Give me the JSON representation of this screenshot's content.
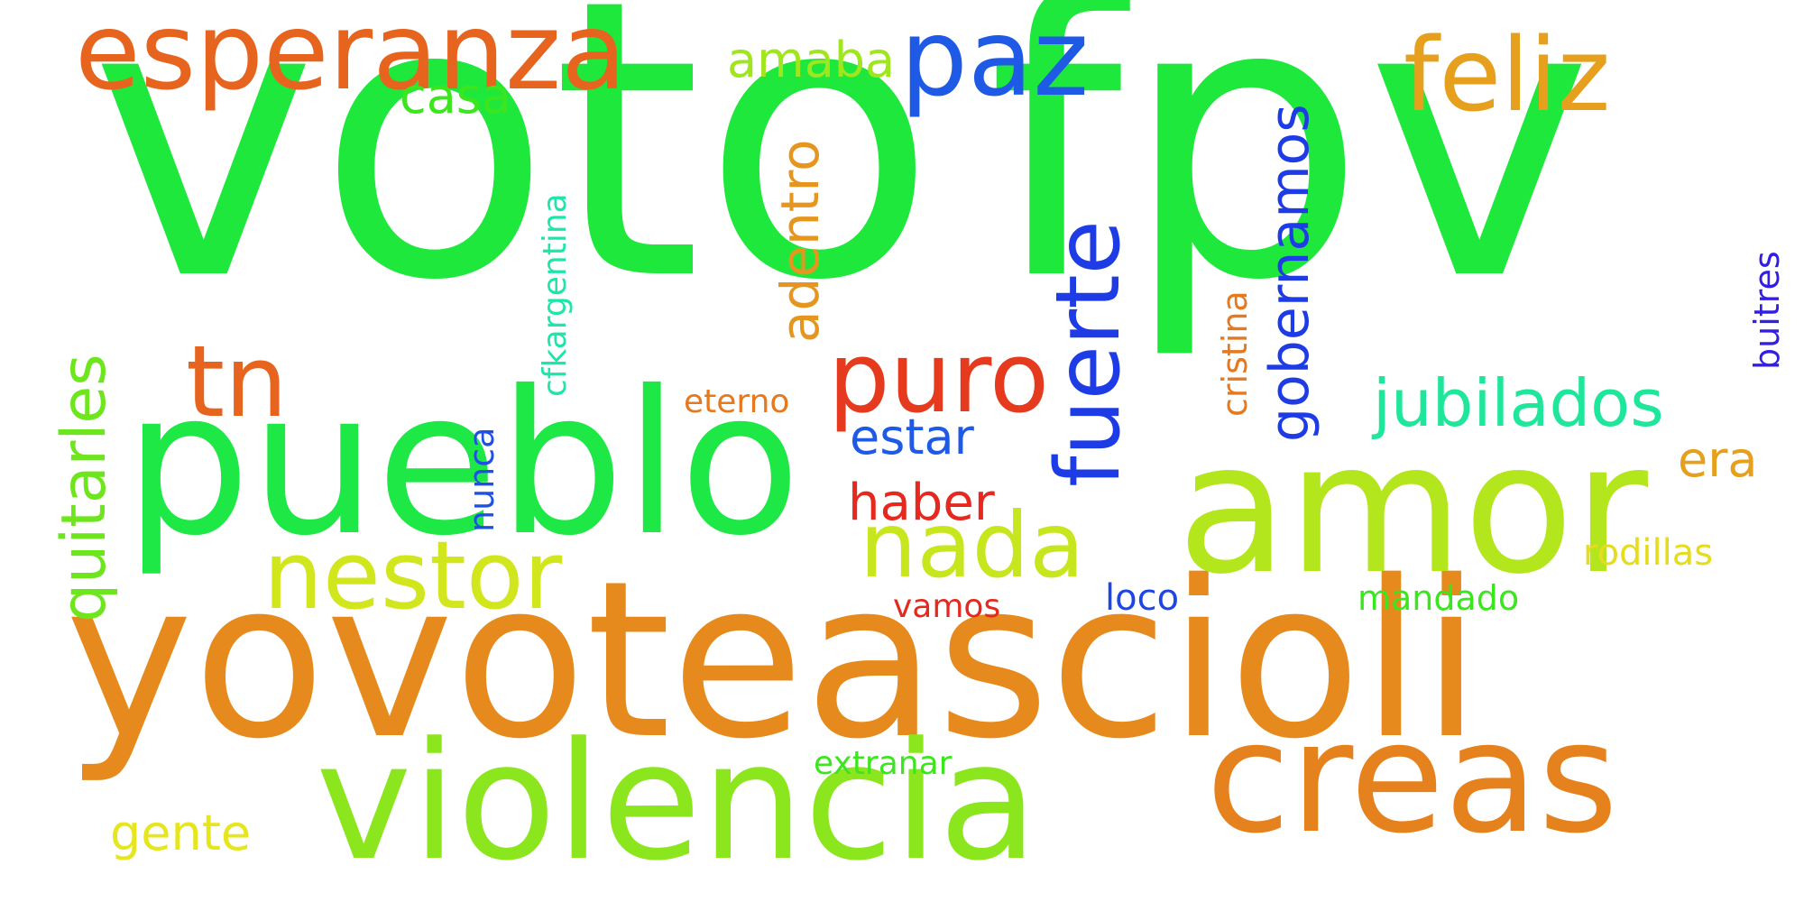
{
  "words": {
    "voto": {
      "text": "voto",
      "color": "#1ee83c"
    },
    "fpv": {
      "text": "fpv",
      "color": "#1ee83c"
    },
    "yovoteascioli": {
      "text": "yovoteascioli",
      "color": "#e68a1e"
    },
    "pueblo": {
      "text": "pueblo",
      "color": "#1ee845"
    },
    "amor": {
      "text": "amor",
      "color": "#b4e61e"
    },
    "violencia": {
      "text": "violencia",
      "color": "#8ce61e"
    },
    "creas": {
      "text": "creas",
      "color": "#e6821e"
    },
    "esperanza": {
      "text": "esperanza",
      "color": "#e6641e"
    },
    "paz": {
      "text": "paz",
      "color": "#1e5ae6"
    },
    "feliz": {
      "text": "feliz",
      "color": "#e6a01e"
    },
    "tn": {
      "text": "tn",
      "color": "#e6641e"
    },
    "puro": {
      "text": "puro",
      "color": "#e63a1e"
    },
    "nestor": {
      "text": "nestor",
      "color": "#d2e61e"
    },
    "nada": {
      "text": "nada",
      "color": "#c8e61e"
    },
    "fuerte": {
      "text": "fuerte",
      "color": "#1e3ce6"
    },
    "jubilados": {
      "text": "jubilados",
      "color": "#1ee69a"
    },
    "gobernamos": {
      "text": "gobernamos",
      "color": "#1e3ce6"
    },
    "adentro": {
      "text": "adentro",
      "color": "#e6961e"
    },
    "quitarles": {
      "text": "quitarles",
      "color": "#6ee61e"
    },
    "cfkargentina": {
      "text": "cfkargentina",
      "color": "#1ee6aa"
    },
    "amaba": {
      "text": "amaba",
      "color": "#a0e61e"
    },
    "casa": {
      "text": "casa",
      "color": "#3ce61e"
    },
    "estar": {
      "text": "estar",
      "color": "#1e5ae6"
    },
    "haber": {
      "text": "haber",
      "color": "#e6281e"
    },
    "eterno": {
      "text": "eterno",
      "color": "#e6781e"
    },
    "nunca": {
      "text": "nunca",
      "color": "#1e50e6"
    },
    "cristina": {
      "text": "cristina",
      "color": "#e6781e"
    },
    "buitres": {
      "text": "buitres",
      "color": "#321ee6"
    },
    "era": {
      "text": "era",
      "color": "#e6a01e"
    },
    "rodillas": {
      "text": "rodillas",
      "color": "#e6dc1e"
    },
    "mandado": {
      "text": "mandado",
      "color": "#3ce61e"
    },
    "loco": {
      "text": "loco",
      "color": "#1e46e6"
    },
    "vamos": {
      "text": "vamos",
      "color": "#e6281e"
    },
    "gente": {
      "text": "gente",
      "color": "#e6e61e"
    },
    "extranar": {
      "text": "extranar",
      "color": "#3ce61e"
    }
  }
}
